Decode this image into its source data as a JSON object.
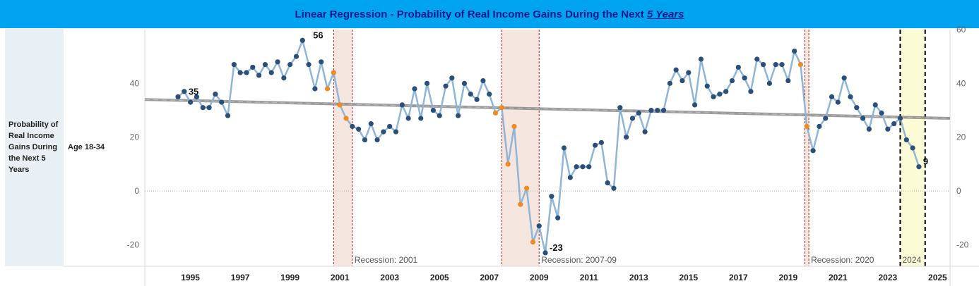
{
  "header": {
    "title_main": "Linear Regression - Probability of Real Income Gains During the Next",
    "title_em": "5 Years"
  },
  "row_header": {
    "measure_label": "Probability of Real Income Gains During the Next 5 Years",
    "group_label": "Age 18-34"
  },
  "colors": {
    "header_bg": "#00a3f0",
    "title_text": "#0a1a8c",
    "line": "#8fb6d8",
    "point": "#2a4f78",
    "recession_point": "#f08a24",
    "trend": "#888888",
    "recession_band": "#f6e6e0",
    "recession_edge": "#b02020",
    "highlight_band": "#fbfbd5"
  },
  "chart_data": {
    "type": "line",
    "title": "Linear Regression - Probability of Real Income Gains During the Next 5 Years",
    "ylabel": "Probability of Real Income Gains During the Next 5 Years",
    "xlim": [
      1993.667,
      2026
    ],
    "ylim": [
      -28,
      60
    ],
    "y_ticks": [
      -20,
      0,
      20,
      40
    ],
    "y_ticks_right": [
      -20,
      0,
      20,
      40,
      60
    ],
    "x_ticks": [
      "1995",
      "1997",
      "1999",
      "2001",
      "2003",
      "2005",
      "2007",
      "2009",
      "2011",
      "2013",
      "2015",
      "2017",
      "2019",
      "2021",
      "2023",
      "2025"
    ],
    "grid": false,
    "trend": {
      "x": [
        1993.667,
        2026
      ],
      "y": [
        34,
        27
      ]
    },
    "recessions": [
      {
        "label": "Recession: 2001",
        "start": 2001.25,
        "end": 2002.0
      },
      {
        "label": "Recession: 2007-09",
        "start": 2008.0,
        "end": 2009.5
      },
      {
        "label": "Recession: 2020",
        "start": 2020.17,
        "end": 2020.33
      }
    ],
    "highlight": {
      "label": "2024",
      "start": 2024.0,
      "end": 2025.0
    },
    "annotations": [
      {
        "x": 1995.25,
        "y": 35,
        "text": "35"
      },
      {
        "x": 2000.25,
        "y": 56,
        "text": "56"
      },
      {
        "x": 2009.75,
        "y": -23,
        "text": "-23"
      },
      {
        "x": 2024.75,
        "y": 9,
        "text": "9"
      }
    ],
    "series": [
      {
        "x": [
          1995.0,
          1995.25,
          1995.5,
          1995.75,
          1996.0,
          1996.25,
          1996.5,
          1996.75,
          1997.0,
          1997.25,
          1997.5,
          1997.75,
          1998.0,
          1998.25,
          1998.5,
          1998.75,
          1999.0,
          1999.25,
          1999.5,
          1999.75,
          2000.0,
          2000.25,
          2000.5,
          2000.75,
          2001.0,
          2001.25,
          2001.5,
          2001.75,
          2002.0,
          2002.25,
          2002.5,
          2002.75,
          2003.0,
          2003.25,
          2003.5,
          2003.75,
          2004.0,
          2004.25,
          2004.5,
          2004.75,
          2005.0,
          2005.25,
          2005.5,
          2005.75,
          2006.0,
          2006.25,
          2006.5,
          2006.75,
          2007.0,
          2007.25,
          2007.5,
          2007.75,
          2008.0,
          2008.25,
          2008.5,
          2008.75,
          2009.0,
          2009.25,
          2009.5,
          2009.75,
          2010.0,
          2010.25,
          2010.5,
          2010.75,
          2011.0,
          2011.25,
          2011.5,
          2011.75,
          2012.0,
          2012.25,
          2012.5,
          2012.75,
          2013.0,
          2013.25,
          2013.5,
          2013.75,
          2014.0,
          2014.25,
          2014.5,
          2014.75,
          2015.0,
          2015.25,
          2015.5,
          2015.75,
          2016.0,
          2016.25,
          2016.5,
          2016.75,
          2017.0,
          2017.25,
          2017.5,
          2017.75,
          2018.0,
          2018.25,
          2018.5,
          2018.75,
          2019.0,
          2019.25,
          2019.5,
          2019.75,
          2020.0,
          2020.25,
          2020.5,
          2020.75,
          2021.0,
          2021.25,
          2021.5,
          2021.75,
          2022.0,
          2022.25,
          2022.5,
          2022.75,
          2023.0,
          2023.25,
          2023.5,
          2023.75,
          2024.0,
          2024.25,
          2024.5,
          2024.75
        ],
        "y": [
          35,
          37,
          33,
          35,
          31,
          31,
          36,
          33,
          28,
          47,
          44,
          44,
          46,
          43,
          47,
          44,
          48,
          42,
          47,
          50,
          56,
          47,
          38,
          48,
          38,
          44,
          32,
          27,
          24,
          23,
          19,
          25,
          19,
          22,
          24,
          22,
          32,
          27,
          38,
          27,
          40,
          30,
          28,
          39,
          42,
          28,
          40,
          36,
          34,
          41,
          36,
          29,
          31,
          10,
          24,
          -5,
          1,
          -19,
          -13,
          -23,
          -2,
          -10,
          16,
          5,
          9,
          9,
          9,
          17,
          18,
          3,
          1,
          31,
          20,
          27,
          29,
          22,
          30,
          30,
          30,
          40,
          45,
          41,
          44,
          32,
          49,
          39,
          35,
          36,
          37,
          41,
          46,
          42,
          37,
          49,
          47,
          40,
          47,
          47,
          41,
          52,
          47,
          24,
          15,
          24,
          27,
          35,
          33,
          42,
          35,
          31,
          27,
          23,
          32,
          29,
          23,
          25,
          27,
          19,
          16,
          9
        ],
        "recession_flags": [
          0,
          0,
          0,
          0,
          0,
          0,
          0,
          0,
          0,
          0,
          0,
          0,
          0,
          0,
          0,
          0,
          0,
          0,
          0,
          0,
          0,
          0,
          0,
          0,
          1,
          1,
          1,
          1,
          0,
          0,
          0,
          0,
          0,
          0,
          0,
          0,
          0,
          0,
          0,
          0,
          0,
          0,
          0,
          0,
          0,
          0,
          0,
          0,
          0,
          0,
          0,
          1,
          1,
          1,
          1,
          1,
          1,
          1,
          0,
          0,
          0,
          0,
          0,
          0,
          0,
          0,
          0,
          0,
          0,
          0,
          0,
          0,
          0,
          0,
          0,
          0,
          0,
          0,
          0,
          0,
          0,
          0,
          0,
          0,
          0,
          0,
          0,
          0,
          0,
          0,
          0,
          0,
          0,
          0,
          0,
          0,
          0,
          0,
          0,
          0,
          1,
          1,
          0,
          0,
          0,
          0,
          0,
          0,
          0,
          0,
          0,
          0,
          0,
          0,
          0,
          0,
          0,
          0,
          0,
          0
        ]
      }
    ]
  }
}
